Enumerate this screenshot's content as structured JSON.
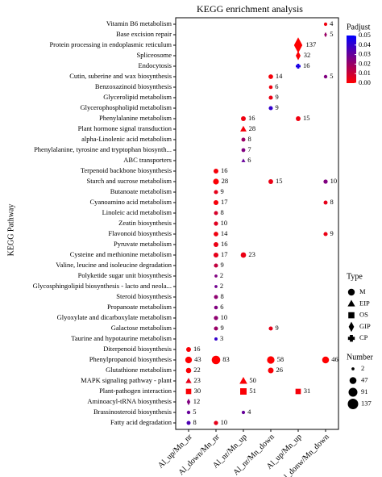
{
  "chart_data": {
    "type": "dotplot",
    "title": "KEGG enrichment analysis",
    "y_label": "KEGG Pathway",
    "categories": [
      "Vitamin B6 metabolism",
      "Base excision repair",
      "Protein processing in endoplasmic reticulum",
      "Spliceosome",
      "Endocytosis",
      "Cutin, suberine and wax biosynthesis",
      "Benzoxazinoid biosynthesis",
      "Glycerolipid metabolism",
      "Glycerophospholipid metabolism",
      "Phenylalanine metabolism",
      "Plant hormone signal transduction",
      "alpha-Linolenic acid metabolism",
      "Phenylalanine, tyrosine and tryptophan biosynth...",
      "ABC transporters",
      "Terpenoid backbone biosynthesis",
      "Starch and sucrose metabolism",
      "Butanoate metabolism",
      "Cyanoamino acid metabolism",
      "Linoleic acid metabolism",
      "Zeatin biosynthesis",
      "Flavonoid biosynthesis",
      "Pyruvate metabolism",
      "Cysteine and methionine metabolism",
      "Valine, leucine and isoleucine degradation",
      "Polyketide sugar unit biosynthesis",
      "Glycosphingolipid biosynthesis - lacto and neola...",
      "Steroid biosynthesis",
      "Propanoate metabolism",
      "Glyoxylate and dicarboxylate metabolism",
      "Galactose metabolism",
      "Taurine and hypotaurine metabolism",
      "Diterpenoid biosynthesis",
      "Phenylpropanoid biosynthesis",
      "Glutathione metabolism",
      "MAPK signaling pathway - plant",
      "Plant-pathogen interaction",
      "Aminoacyl-tRNA biosynthesis",
      "Brassinosteroid biosynthesis",
      "Fatty acid degradation"
    ],
    "series": [
      {
        "name": "Al_up/Mn_nr",
        "values": [
          null,
          null,
          null,
          null,
          null,
          null,
          null,
          null,
          null,
          null,
          null,
          null,
          null,
          null,
          null,
          null,
          null,
          null,
          null,
          null,
          null,
          null,
          null,
          null,
          null,
          null,
          null,
          null,
          null,
          null,
          null,
          16,
          43,
          22,
          23,
          30,
          12,
          5,
          8
        ],
        "padjust": [
          null,
          null,
          null,
          null,
          null,
          null,
          null,
          null,
          null,
          null,
          null,
          null,
          null,
          null,
          null,
          null,
          null,
          null,
          null,
          null,
          null,
          null,
          null,
          null,
          null,
          null,
          null,
          null,
          null,
          null,
          null,
          0.001,
          0.0003,
          0.001,
          0.005,
          0.001,
          0.025,
          0.03,
          0.035
        ],
        "types": [
          null,
          null,
          null,
          null,
          null,
          null,
          null,
          null,
          null,
          null,
          null,
          null,
          null,
          null,
          null,
          null,
          null,
          null,
          null,
          null,
          null,
          null,
          null,
          null,
          null,
          null,
          null,
          null,
          null,
          null,
          null,
          "M",
          "M",
          "M",
          "EIP",
          "OS",
          "GIP",
          "M",
          "M"
        ]
      },
      {
        "name": "Al_down/Mn_nr",
        "values": [
          null,
          null,
          null,
          null,
          null,
          null,
          null,
          null,
          null,
          null,
          null,
          null,
          null,
          null,
          16,
          28,
          9,
          17,
          8,
          10,
          14,
          16,
          17,
          9,
          2,
          2,
          8,
          6,
          10,
          9,
          3,
          null,
          83,
          null,
          null,
          null,
          null,
          null,
          10
        ],
        "padjust": [
          null,
          null,
          null,
          null,
          null,
          null,
          null,
          null,
          null,
          null,
          null,
          null,
          null,
          null,
          0.002,
          0.001,
          0.005,
          0.002,
          0.008,
          0.006,
          0.003,
          0.004,
          0.005,
          0.012,
          0.025,
          0.028,
          0.022,
          0.025,
          0.022,
          0.02,
          0.04,
          null,
          0.0001,
          null,
          null,
          null,
          null,
          null,
          0.005
        ],
        "types": [
          null,
          null,
          null,
          null,
          null,
          null,
          null,
          null,
          null,
          null,
          null,
          null,
          null,
          null,
          "M",
          "M",
          "M",
          "M",
          "M",
          "M",
          "M",
          "M",
          "M",
          "M",
          "M",
          "M",
          "M",
          "M",
          "M",
          "M",
          "M",
          null,
          "M",
          null,
          null,
          null,
          null,
          null,
          "M"
        ]
      },
      {
        "name": "Al_nr/Mn_up",
        "values": [
          null,
          null,
          null,
          null,
          null,
          null,
          null,
          null,
          null,
          16,
          28,
          8,
          7,
          6,
          null,
          null,
          null,
          null,
          null,
          null,
          null,
          null,
          23,
          null,
          null,
          null,
          null,
          null,
          null,
          null,
          null,
          null,
          null,
          null,
          50,
          51,
          null,
          4,
          null
        ],
        "padjust": [
          null,
          null,
          null,
          null,
          null,
          null,
          null,
          null,
          null,
          0.003,
          0.002,
          0.02,
          0.025,
          0.03,
          null,
          null,
          null,
          null,
          null,
          null,
          null,
          null,
          0.004,
          null,
          null,
          null,
          null,
          null,
          null,
          null,
          null,
          null,
          null,
          null,
          0.001,
          0.001,
          null,
          0.03,
          null
        ],
        "types": [
          null,
          null,
          null,
          null,
          null,
          null,
          null,
          null,
          null,
          "M",
          "EIP",
          "M",
          "M",
          "EIP",
          null,
          null,
          null,
          null,
          null,
          null,
          null,
          null,
          "M",
          null,
          null,
          null,
          null,
          null,
          null,
          null,
          null,
          null,
          null,
          null,
          "EIP",
          "OS",
          null,
          "M",
          null
        ]
      },
      {
        "name": "Al_nr/Mn_down",
        "values": [
          null,
          null,
          null,
          null,
          null,
          14,
          6,
          9,
          9,
          null,
          null,
          null,
          null,
          null,
          null,
          15,
          null,
          null,
          null,
          null,
          null,
          null,
          null,
          null,
          null,
          null,
          null,
          null,
          null,
          9,
          null,
          null,
          58,
          26,
          null,
          null,
          null,
          null,
          null
        ],
        "padjust": [
          null,
          null,
          null,
          null,
          null,
          0.002,
          0.003,
          0.004,
          0.04,
          null,
          null,
          null,
          null,
          null,
          null,
          0.004,
          null,
          null,
          null,
          null,
          null,
          null,
          null,
          null,
          null,
          null,
          null,
          null,
          null,
          0.005,
          null,
          null,
          0.0001,
          0.001,
          null,
          null,
          null,
          null,
          null
        ],
        "types": [
          null,
          null,
          null,
          null,
          null,
          "M",
          "M",
          "M",
          "M",
          null,
          null,
          null,
          null,
          null,
          null,
          "M",
          null,
          null,
          null,
          null,
          null,
          null,
          null,
          null,
          null,
          null,
          null,
          null,
          null,
          "M",
          null,
          null,
          "M",
          "M",
          null,
          null,
          null,
          null,
          null
        ]
      },
      {
        "name": "Al_up/Mn_up",
        "values": [
          null,
          null,
          137,
          32,
          16,
          null,
          null,
          null,
          null,
          15,
          null,
          null,
          null,
          null,
          null,
          null,
          null,
          null,
          null,
          null,
          null,
          null,
          null,
          null,
          null,
          null,
          null,
          null,
          null,
          null,
          null,
          null,
          null,
          null,
          null,
          31,
          null,
          null,
          null
        ],
        "padjust": [
          null,
          null,
          0.0001,
          0.001,
          0.045,
          null,
          null,
          null,
          null,
          0.003,
          null,
          null,
          null,
          null,
          null,
          null,
          null,
          null,
          null,
          null,
          null,
          null,
          null,
          null,
          null,
          null,
          null,
          null,
          null,
          null,
          null,
          null,
          null,
          null,
          null,
          0.002,
          null,
          null,
          null
        ],
        "types": [
          null,
          null,
          "GIP",
          "GIP",
          "CP",
          null,
          null,
          null,
          null,
          "M",
          null,
          null,
          null,
          null,
          null,
          null,
          null,
          null,
          null,
          null,
          null,
          null,
          null,
          null,
          null,
          null,
          null,
          null,
          null,
          null,
          null,
          null,
          null,
          null,
          null,
          "OS",
          null,
          null,
          null
        ]
      },
      {
        "name": "Al_donw/Mn_down",
        "values": [
          4,
          5,
          null,
          null,
          null,
          5,
          null,
          null,
          null,
          null,
          null,
          null,
          null,
          null,
          null,
          10,
          null,
          8,
          null,
          null,
          9,
          null,
          null,
          null,
          null,
          null,
          null,
          null,
          null,
          null,
          null,
          null,
          46,
          null,
          null,
          null,
          null,
          null,
          null
        ],
        "padjust": [
          0.003,
          0.02,
          null,
          null,
          null,
          0.025,
          null,
          null,
          null,
          null,
          null,
          null,
          null,
          null,
          null,
          0.025,
          null,
          0.005,
          null,
          null,
          0.004,
          null,
          null,
          null,
          null,
          null,
          null,
          null,
          null,
          null,
          null,
          null,
          0.0001,
          null,
          null,
          null,
          null,
          null,
          null
        ],
        "types": [
          "M",
          "GIP",
          null,
          null,
          null,
          "M",
          null,
          null,
          null,
          null,
          null,
          null,
          null,
          null,
          null,
          "M",
          null,
          "M",
          null,
          null,
          "M",
          null,
          null,
          null,
          null,
          null,
          null,
          null,
          null,
          null,
          null,
          null,
          "M",
          null,
          null,
          null,
          null,
          null,
          null
        ]
      }
    ],
    "colorbar": {
      "title": "Padjust",
      "lim": [
        0,
        0.05
      ],
      "colors": [
        "#ff0000",
        "#0000ff"
      ],
      "ticks": [
        {
          "value": 0,
          "label": "0.00"
        },
        {
          "value": 0.01,
          "label": "0.01"
        },
        {
          "value": 0.02,
          "label": "0.02"
        },
        {
          "value": 0.03,
          "label": "0.03"
        },
        {
          "value": 0.04,
          "label": "0.04"
        },
        {
          "value": 0.05,
          "label": "0.05"
        }
      ]
    },
    "shape_legend": {
      "title": "Type",
      "items": [
        "M",
        "EIP",
        "OS",
        "GIP",
        "CP"
      ]
    },
    "size_legend": {
      "title": "Number",
      "values": [
        2,
        47,
        91,
        137
      ]
    }
  }
}
